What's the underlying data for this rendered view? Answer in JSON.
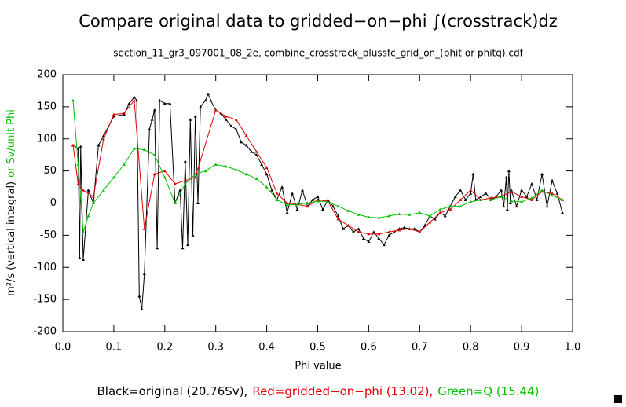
{
  "chart_data": {
    "type": "line",
    "title": "Compare original data to gridded−on−phi ∫(crosstrack)dz",
    "subtitle": "section_11_gr3_097001_08_2e, combine_crosstrack_plussfc_grid_on_(phit or phitq).cdf",
    "xlabel": "Phi value",
    "ylabel": [
      "m²/s (vertical integral)",
      "or Sv/unit Phi"
    ],
    "ylabel_colors": [
      "#000000",
      "#00c000"
    ],
    "xlim": [
      0,
      1
    ],
    "ylim": [
      -200,
      200
    ],
    "xticks": [
      {
        "value": 0,
        "label": "0.0"
      },
      0.1,
      0.2,
      0.3,
      0.4,
      0.5,
      0.6,
      0.7,
      0.8,
      0.9,
      {
        "value": 1,
        "label": "1.0"
      }
    ],
    "yticks": [
      -200,
      -150,
      -100,
      -50,
      0,
      50,
      100,
      150,
      200
    ],
    "zero_line": true,
    "series": [
      {
        "name": "Black=original (20.76Sv),",
        "color": "#000000",
        "x": [
          0.02,
          0.03,
          0.033,
          0.035,
          0.04,
          0.05,
          0.06,
          0.07,
          0.08,
          0.1,
          0.12,
          0.13,
          0.14,
          0.145,
          0.15,
          0.155,
          0.16,
          0.17,
          0.175,
          0.18,
          0.185,
          0.19,
          0.2,
          0.21,
          0.22,
          0.23,
          0.235,
          0.24,
          0.245,
          0.25,
          0.255,
          0.26,
          0.265,
          0.27,
          0.28,
          0.285,
          0.29,
          0.3,
          0.31,
          0.32,
          0.33,
          0.34,
          0.35,
          0.36,
          0.37,
          0.38,
          0.39,
          0.4,
          0.41,
          0.42,
          0.43,
          0.44,
          0.45,
          0.46,
          0.47,
          0.48,
          0.49,
          0.5,
          0.51,
          0.52,
          0.53,
          0.54,
          0.55,
          0.56,
          0.57,
          0.58,
          0.59,
          0.6,
          0.61,
          0.62,
          0.63,
          0.64,
          0.65,
          0.66,
          0.67,
          0.68,
          0.69,
          0.7,
          0.71,
          0.72,
          0.73,
          0.74,
          0.75,
          0.76,
          0.77,
          0.78,
          0.79,
          0.8,
          0.805,
          0.81,
          0.82,
          0.83,
          0.84,
          0.85,
          0.86,
          0.865,
          0.87,
          0.872,
          0.875,
          0.878,
          0.88,
          0.89,
          0.9,
          0.91,
          0.92,
          0.93,
          0.94,
          0.95,
          0.96,
          0.97,
          0.98
        ],
        "values": [
          90,
          85,
          -85,
          88,
          -88,
          20,
          0,
          90,
          105,
          135,
          138,
          155,
          165,
          160,
          -145,
          -165,
          -110,
          115,
          130,
          145,
          -70,
          160,
          155,
          155,
          0,
          20,
          -70,
          65,
          -65,
          130,
          -50,
          135,
          0,
          150,
          160,
          170,
          160,
          145,
          140,
          130,
          120,
          115,
          95,
          90,
          80,
          75,
          60,
          45,
          20,
          5,
          25,
          -15,
          15,
          -10,
          20,
          -5,
          5,
          10,
          -10,
          5,
          -5,
          -20,
          -40,
          -35,
          -45,
          -40,
          -55,
          -60,
          -45,
          -55,
          -65,
          -50,
          -45,
          -40,
          -38,
          -40,
          -40,
          -45,
          -35,
          -20,
          -25,
          -15,
          -20,
          -5,
          10,
          20,
          5,
          15,
          45,
          5,
          10,
          15,
          5,
          10,
          20,
          -5,
          40,
          -10,
          50,
          0,
          20,
          -5,
          20,
          10,
          30,
          5,
          45,
          -5,
          35,
          15,
          -15
        ]
      },
      {
        "name": "Red=gridded−on−phi (13.02),",
        "color": "#e00000",
        "x": [
          0.02,
          0.03,
          0.04,
          0.06,
          0.08,
          0.1,
          0.12,
          0.14,
          0.16,
          0.18,
          0.2,
          0.22,
          0.24,
          0.26,
          0.3,
          0.32,
          0.34,
          0.36,
          0.38,
          0.4,
          0.42,
          0.44,
          0.46,
          0.48,
          0.5,
          0.52,
          0.54,
          0.56,
          0.58,
          0.6,
          0.62,
          0.64,
          0.66,
          0.68,
          0.7,
          0.72,
          0.74,
          0.76,
          0.78,
          0.8,
          0.82,
          0.84,
          0.86,
          0.88,
          0.9,
          0.92,
          0.94,
          0.96,
          0.98
        ],
        "values": [
          90,
          30,
          20,
          10,
          100,
          138,
          140,
          160,
          -40,
          45,
          50,
          30,
          35,
          40,
          145,
          135,
          130,
          105,
          80,
          55,
          15,
          0,
          -2,
          -5,
          5,
          3,
          -25,
          -35,
          -45,
          -48,
          -48,
          -45,
          -42,
          -40,
          -45,
          -30,
          -15,
          -10,
          5,
          20,
          5,
          8,
          10,
          18,
          10,
          5,
          18,
          15,
          5
        ]
      },
      {
        "name": "Green=Q (15.44)",
        "color": "#00c000",
        "x": [
          0.02,
          0.03,
          0.04,
          0.05,
          0.06,
          0.08,
          0.1,
          0.12,
          0.14,
          0.16,
          0.18,
          0.2,
          0.22,
          0.24,
          0.26,
          0.28,
          0.3,
          0.32,
          0.34,
          0.36,
          0.38,
          0.4,
          0.42,
          0.44,
          0.46,
          0.48,
          0.5,
          0.52,
          0.54,
          0.56,
          0.58,
          0.6,
          0.62,
          0.64,
          0.66,
          0.68,
          0.7,
          0.72,
          0.74,
          0.76,
          0.78,
          0.8,
          0.82,
          0.84,
          0.86,
          0.88,
          0.9,
          0.92,
          0.94,
          0.96,
          0.98
        ],
        "values": [
          160,
          60,
          -45,
          -20,
          0,
          20,
          40,
          60,
          85,
          83,
          75,
          40,
          0,
          30,
          45,
          50,
          60,
          57,
          52,
          45,
          38,
          25,
          5,
          -3,
          -2,
          0,
          3,
          2,
          -5,
          -12,
          -18,
          -22,
          -23,
          -20,
          -17,
          -18,
          -15,
          -20,
          -10,
          -5,
          -5,
          2,
          5,
          5,
          10,
          3,
          2,
          8,
          20,
          12,
          5
        ]
      }
    ]
  }
}
